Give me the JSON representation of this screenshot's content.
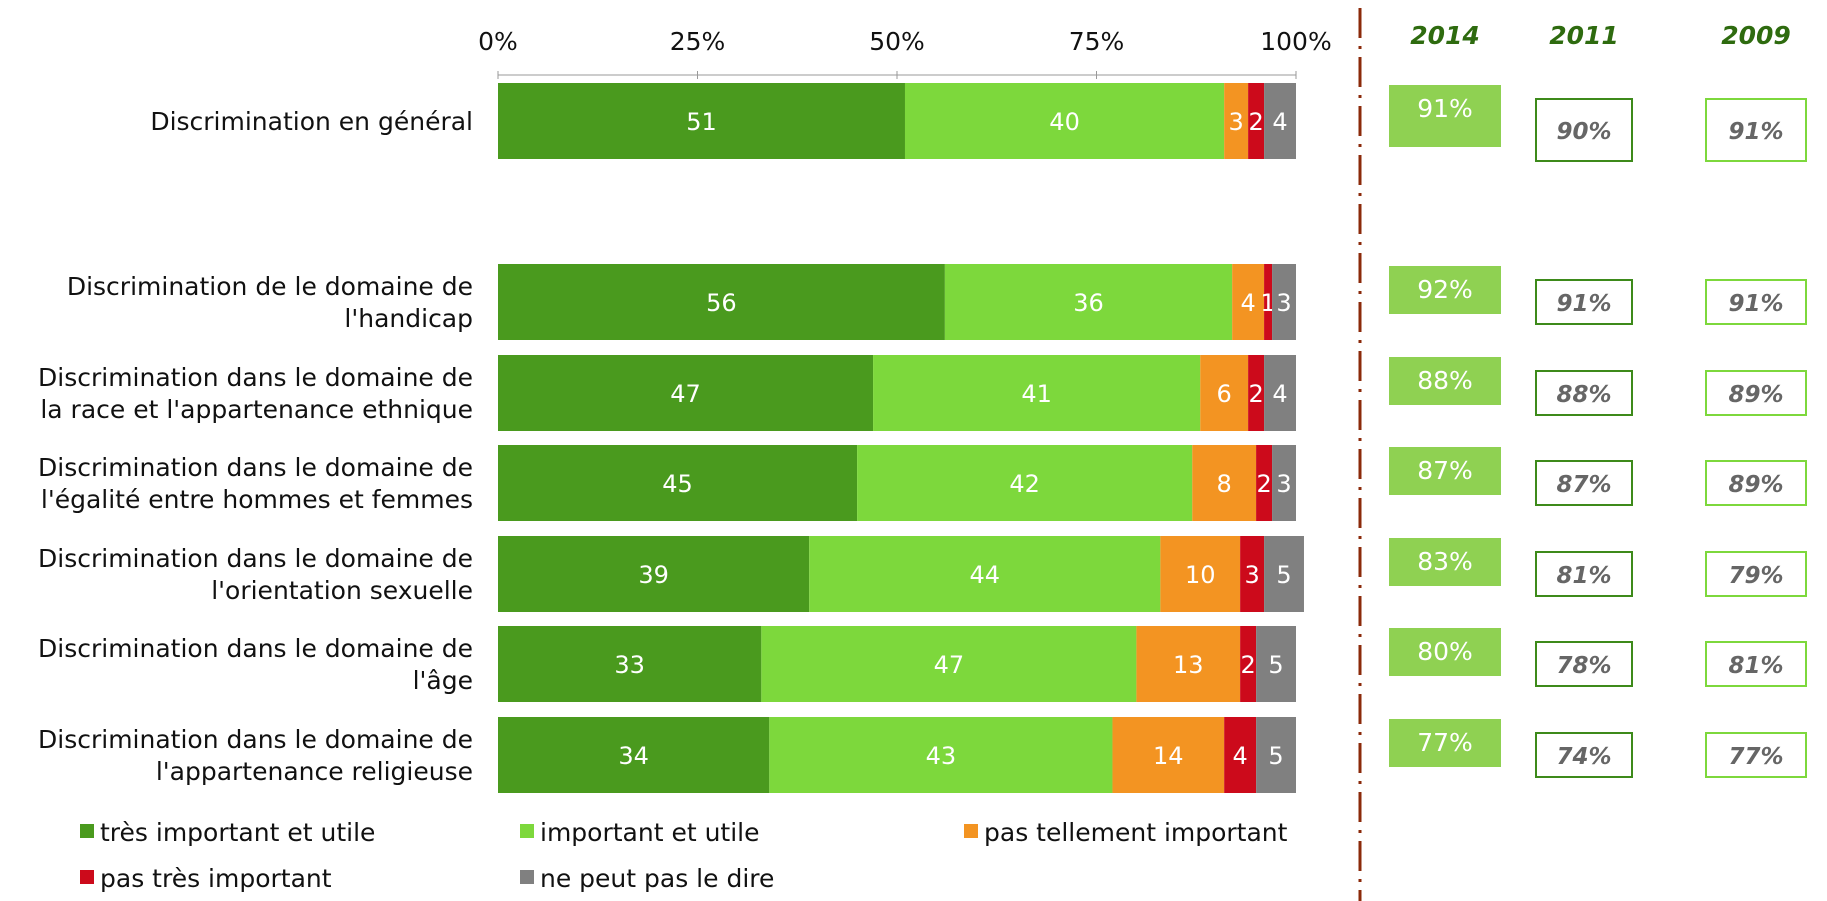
{
  "chart_data": {
    "type": "bar",
    "orientation": "horizontal",
    "stacked": true,
    "xlim": [
      0,
      100
    ],
    "x_ticks": [
      "0%",
      "25%",
      "50%",
      "75%",
      "100%"
    ],
    "categories": [
      [
        "Discrimination en général"
      ],
      [
        "Discrimination de le domaine de",
        "l'handicap"
      ],
      [
        "Discrimination dans le domaine de",
        "la race et l'appartenance ethnique"
      ],
      [
        "Discrimination dans le domaine de",
        "l'égalité entre hommes et femmes"
      ],
      [
        "Discrimination dans le domaine de",
        "l'orientation sexuelle"
      ],
      [
        "Discrimination dans le domaine de",
        "l'âge"
      ],
      [
        "Discrimination dans le domaine de",
        "l'appartenance religieuse"
      ]
    ],
    "series": [
      {
        "name": "très important et utile",
        "color": "#4a9a1e",
        "values": [
          51,
          56,
          47,
          45,
          39,
          33,
          34
        ]
      },
      {
        "name": "important et utile",
        "color": "#7dd83c",
        "values": [
          40,
          36,
          41,
          42,
          44,
          47,
          43
        ]
      },
      {
        "name": "pas tellement important",
        "color": "#f39422",
        "values": [
          3,
          4,
          6,
          8,
          10,
          13,
          14
        ]
      },
      {
        "name": "pas très important",
        "color": "#cc0a1b",
        "values": [
          2,
          1,
          2,
          2,
          3,
          2,
          4
        ]
      },
      {
        "name": "ne peut pas le dire",
        "color": "#808080",
        "values": [
          4,
          3,
          4,
          3,
          5,
          5,
          5
        ]
      }
    ],
    "trend": {
      "years": [
        "2014",
        "2011",
        "2009"
      ],
      "values": [
        [
          "91%",
          "90%",
          "91%"
        ],
        [
          "92%",
          "91%",
          "91%"
        ],
        [
          "88%",
          "88%",
          "89%"
        ],
        [
          "87%",
          "87%",
          "89%"
        ],
        [
          "83%",
          "81%",
          "79%"
        ],
        [
          "80%",
          "78%",
          "81%"
        ],
        [
          "77%",
          "74%",
          "77%"
        ]
      ]
    },
    "legend_position": "bottom",
    "colors": {
      "divider": "#8b2a0a",
      "year_text": "#2e6b0f",
      "box_2014_fill": "#8fd152",
      "box_2011_border": "#3d8a1a",
      "box_2009_border": "#7dd83c"
    }
  }
}
